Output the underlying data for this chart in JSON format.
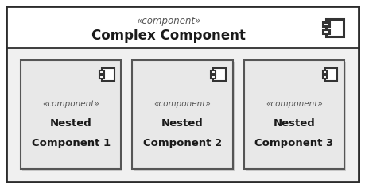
{
  "bg_color": "#ffffff",
  "outer_border_color": "#2b2b2b",
  "header_bg": "#ffffff",
  "body_bg": "#f0f0f0",
  "nested_bg_color": "#e8e8e8",
  "nested_border_color": "#555555",
  "title_stereotype": "«component»",
  "title_name": "Complex Component",
  "nested": [
    {
      "stereotype": "«component»",
      "line1": "Nested",
      "line2": "Component 1"
    },
    {
      "stereotype": "«component»",
      "line1": "Nested",
      "line2": "Component 2"
    },
    {
      "stereotype": "«component»",
      "line1": "Nested",
      "line2": "Component 3"
    }
  ]
}
